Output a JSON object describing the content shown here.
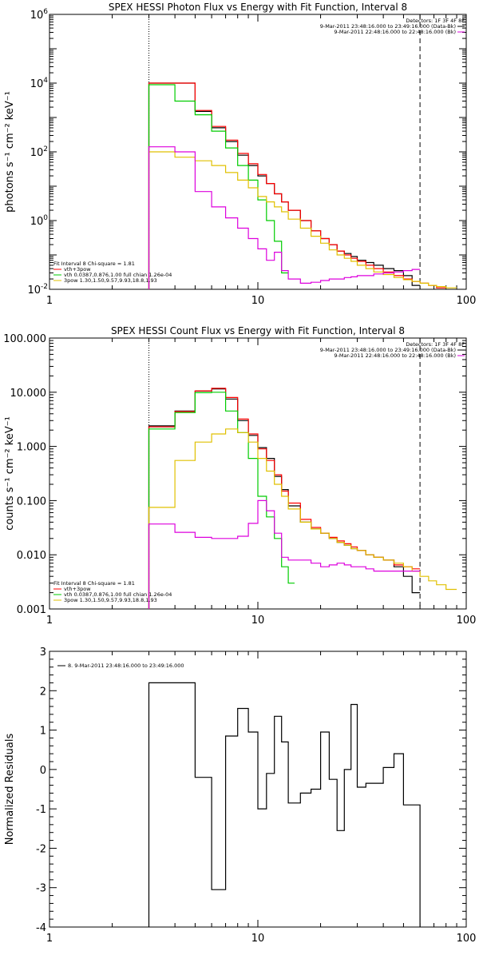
{
  "colors": {
    "black": "#000000",
    "red": "#ff0000",
    "green": "#00cc00",
    "magenta": "#dd00dd",
    "yellow": "#e0c000"
  },
  "chart_data": [
    {
      "id": "p1",
      "type": "line",
      "title": "SPEX HESSI Photon Flux vs Energy with Fit Function, Interval 8",
      "ylabel": "photons s⁻¹ cm⁻² keV⁻¹",
      "xscale": "log",
      "yscale": "log",
      "xlim": [
        1,
        100
      ],
      "ylim": [
        0.01,
        1000000
      ],
      "xticks": [
        {
          "v": 1,
          "label": "1"
        },
        {
          "v": 10,
          "label": "10"
        },
        {
          "v": 100,
          "label": "100"
        }
      ],
      "yticks": [
        {
          "v": 0.01,
          "label": "10",
          "sup": "-2"
        },
        {
          "v": 1,
          "label": "10",
          "sup": "0"
        },
        {
          "v": 100,
          "label": "10",
          "sup": "2"
        },
        {
          "v": 10000,
          "label": "10",
          "sup": "4"
        },
        {
          "v": 1000000,
          "label": "10",
          "sup": "6"
        }
      ],
      "vlines": [
        {
          "x": 3.0,
          "style": "dotted"
        },
        {
          "x": 60,
          "style": "dashed"
        }
      ],
      "legend_top": {
        "placement": "top-right",
        "header": "Detectors: 1F 3F 4F 8F",
        "items": [
          {
            "label": "9-Mar-2011 23:48:16.000 to 23:49:16.000 (Data-Bk)",
            "color": "black"
          },
          {
            "label": "9-Mar-2011 22:48:16.000 to 22:48:16.000 (Bk)",
            "color": "magenta"
          }
        ]
      },
      "legend_bottom": {
        "placement": "bottom-left",
        "header": "Fit Interval 8   Chi-square = 1.81",
        "items": [
          {
            "label": "vth+3pow",
            "color": "red"
          },
          {
            "label": "vth 0.0387,0.876,1.00  full chian 1.26e-04",
            "color": "green"
          },
          {
            "label": "3pow 1.30,1.50,9.57,9.93,18.8,1.93",
            "color": "yellow"
          }
        ]
      },
      "series": [
        {
          "color": "black",
          "edges": [
            3.0,
            4.0,
            5.0,
            6.0,
            7.0,
            8.0,
            9.0,
            10.0,
            11.0,
            12.0,
            13.0,
            14.0,
            16.0,
            18.0,
            20.0,
            22.0,
            24.0,
            26.0,
            28.0,
            30.0,
            33.0,
            36.0,
            40.0,
            45.0,
            50.0,
            55.0,
            60.0
          ],
          "values": [
            10000,
            10000,
            1500,
            500,
            200,
            80,
            40,
            20,
            12,
            6,
            3.5,
            2,
            1,
            0.5,
            0.3,
            0.2,
            0.13,
            0.11,
            0.09,
            0.07,
            0.06,
            0.05,
            0.04,
            0.035,
            0.025,
            0.013
          ]
        },
        {
          "color": "red",
          "edges": [
            3.0,
            4.0,
            5.0,
            6.0,
            7.0,
            8.0,
            9.0,
            10.0,
            11.0,
            12.0,
            13.0,
            14.0,
            16.0,
            18.0,
            20.0,
            22.0,
            24.0,
            26.0,
            28.0,
            30.0,
            33.0,
            36.0,
            40.0,
            45.0,
            50.0,
            55.0,
            60.0,
            66.0,
            72.0,
            80.0
          ],
          "values": [
            10000,
            10000,
            1600,
            550,
            220,
            90,
            45,
            22,
            12,
            6,
            3.5,
            2,
            1,
            0.5,
            0.3,
            0.2,
            0.13,
            0.1,
            0.08,
            0.065,
            0.05,
            0.04,
            0.032,
            0.025,
            0.02,
            0.017,
            0.015,
            0.013,
            0.011
          ]
        },
        {
          "color": "green",
          "edges": [
            3.0,
            4.0,
            5.0,
            6.0,
            7.0,
            8.0,
            9.0,
            10.0,
            11.0,
            12.0,
            13.0,
            14.0
          ],
          "values": [
            9000,
            3000,
            1200,
            400,
            130,
            40,
            15,
            4,
            1,
            0.25,
            0.03
          ]
        },
        {
          "color": "yellow",
          "edges": [
            3.0,
            4.0,
            5.0,
            6.0,
            7.0,
            8.0,
            9.0,
            10.0,
            11.0,
            12.0,
            13.0,
            14.0,
            16.0,
            18.0,
            20.0,
            22.0,
            24.0,
            26.0,
            28.0,
            30.0,
            33.0,
            36.0,
            40.0,
            45.0,
            50.0,
            55.0,
            60.0,
            66.0,
            72.0,
            80.0,
            90.0
          ],
          "values": [
            100,
            70,
            55,
            40,
            25,
            15,
            9,
            5,
            3.5,
            2.5,
            1.8,
            1.1,
            0.6,
            0.35,
            0.22,
            0.14,
            0.1,
            0.08,
            0.065,
            0.05,
            0.04,
            0.032,
            0.027,
            0.022,
            0.019,
            0.017,
            0.015,
            0.013,
            0.012,
            0.011
          ]
        },
        {
          "color": "magenta",
          "edges": [
            3.0,
            4.0,
            5.0,
            6.0,
            7.0,
            8.0,
            9.0,
            10.0,
            11.0,
            12.0,
            13.0,
            14.0,
            16.0,
            18.0,
            20.0,
            22.0,
            24.0,
            26.0,
            28.0,
            30.0,
            33.0,
            36.0,
            40.0,
            45.0,
            50.0,
            55.0,
            60.0
          ],
          "values": [
            140,
            100,
            7,
            2.5,
            1.2,
            0.6,
            0.3,
            0.15,
            0.07,
            0.12,
            0.035,
            0.02,
            0.015,
            0.016,
            0.018,
            0.02,
            0.02,
            0.022,
            0.023,
            0.025,
            0.025,
            0.028,
            0.03,
            0.032,
            0.035,
            0.038
          ]
        }
      ]
    },
    {
      "id": "p2",
      "type": "line",
      "title": "SPEX HESSI Count Flux vs Energy with Fit Function, Interval 8",
      "ylabel": "counts s⁻¹ cm⁻² keV⁻¹",
      "xscale": "log",
      "yscale": "log",
      "xlim": [
        1,
        100
      ],
      "ylim": [
        0.001,
        100
      ],
      "xticks": [
        {
          "v": 1,
          "label": "1"
        },
        {
          "v": 10,
          "label": "10"
        },
        {
          "v": 100,
          "label": "100"
        }
      ],
      "yticks": [
        {
          "v": 0.001,
          "label": "0.001"
        },
        {
          "v": 0.01,
          "label": "0.010"
        },
        {
          "v": 0.1,
          "label": "0.100"
        },
        {
          "v": 1,
          "label": "1.000"
        },
        {
          "v": 10,
          "label": "10.000"
        },
        {
          "v": 100,
          "label": "100.000"
        }
      ],
      "vlines": [
        {
          "x": 3.0,
          "style": "dotted"
        },
        {
          "x": 60,
          "style": "dashed"
        }
      ],
      "legend_top": {
        "placement": "top-right",
        "header": "Detectors: 1F 3F 4F 8F",
        "items": [
          {
            "label": "9-Mar-2011 23:48:16.000 to 23:49:16.000 (Data-Bk)",
            "color": "black"
          },
          {
            "label": "9-Mar-2011 22:48:16.000 to 22:48:16.000 (Bk)",
            "color": "magenta"
          }
        ]
      },
      "legend_bottom": {
        "placement": "bottom-left",
        "header": "Fit Interval 8   Chi-square = 1.81",
        "items": [
          {
            "label": "vth+3pow",
            "color": "red"
          },
          {
            "label": "vth 0.0387,0.876,1.00  full chian 1.26e-04",
            "color": "green"
          },
          {
            "label": "3pow 1.30,1.50,9.57,9.93,18.8,1.93",
            "color": "yellow"
          }
        ]
      },
      "series": [
        {
          "color": "black",
          "edges": [
            3.0,
            4.0,
            5.0,
            6.0,
            7.0,
            8.0,
            9.0,
            10.0,
            11.0,
            12.0,
            13.0,
            14.0,
            16.0,
            18.0,
            20.0,
            22.0,
            24.0,
            26.0,
            28.0,
            30.0,
            33.0,
            36.0,
            40.0,
            45.0,
            50.0,
            55.0,
            60.0
          ],
          "values": [
            2.4,
            4.5,
            10.5,
            11.5,
            7.5,
            3.0,
            1.6,
            0.95,
            0.6,
            0.28,
            0.16,
            0.08,
            0.04,
            0.03,
            0.025,
            0.02,
            0.017,
            0.015,
            0.013,
            0.012,
            0.01,
            0.009,
            0.008,
            0.006,
            0.004,
            0.002
          ]
        },
        {
          "color": "red",
          "edges": [
            3.0,
            4.0,
            5.0,
            6.0,
            7.0,
            8.0,
            9.0,
            10.0,
            11.0,
            12.0,
            13.0,
            14.0,
            16.0,
            18.0,
            20.0,
            22.0,
            24.0,
            26.0,
            28.0,
            30.0,
            33.0,
            36.0,
            40.0,
            45.0,
            50.0,
            55.0,
            60.0
          ],
          "values": [
            2.3,
            4.4,
            10.6,
            11.8,
            8.0,
            3.2,
            1.7,
            0.9,
            0.55,
            0.3,
            0.15,
            0.09,
            0.045,
            0.032,
            0.025,
            0.021,
            0.018,
            0.016,
            0.014,
            0.012,
            0.01,
            0.009,
            0.008,
            0.0065,
            0.006,
            0.0055
          ]
        },
        {
          "color": "green",
          "edges": [
            3.0,
            4.0,
            5.0,
            6.0,
            7.0,
            8.0,
            9.0,
            10.0,
            11.0,
            12.0,
            13.0,
            14.0,
            15.0
          ],
          "values": [
            2.1,
            4.2,
            9.8,
            10.0,
            4.5,
            1.8,
            0.6,
            0.12,
            0.05,
            0.02,
            0.006,
            0.003
          ]
        },
        {
          "color": "yellow",
          "edges": [
            3.0,
            4.0,
            5.0,
            6.0,
            7.0,
            8.0,
            9.0,
            10.0,
            11.0,
            12.0,
            13.0,
            14.0,
            16.0,
            18.0,
            20.0,
            22.0,
            24.0,
            26.0,
            28.0,
            30.0,
            33.0,
            36.0,
            40.0,
            45.0,
            50.0,
            55.0,
            60.0,
            66.0,
            72.0,
            80.0,
            90.0
          ],
          "values": [
            0.075,
            0.55,
            1.2,
            1.7,
            2.1,
            1.8,
            1.2,
            0.6,
            0.35,
            0.2,
            0.12,
            0.07,
            0.04,
            0.03,
            0.025,
            0.02,
            0.017,
            0.015,
            0.013,
            0.012,
            0.01,
            0.009,
            0.008,
            0.007,
            0.006,
            0.005,
            0.004,
            0.0033,
            0.0028,
            0.0023
          ]
        },
        {
          "color": "magenta",
          "edges": [
            3.0,
            4.0,
            5.0,
            6.0,
            7.0,
            8.0,
            9.0,
            10.0,
            11.0,
            12.0,
            13.0,
            14.0,
            16.0,
            18.0,
            20.0,
            22.0,
            24.0,
            26.0,
            28.0,
            30.0,
            33.0,
            36.0,
            40.0,
            45.0,
            50.0,
            55.0,
            60.0
          ],
          "values": [
            0.037,
            0.026,
            0.021,
            0.02,
            0.02,
            0.022,
            0.038,
            0.1,
            0.065,
            0.025,
            0.009,
            0.008,
            0.008,
            0.007,
            0.006,
            0.0065,
            0.007,
            0.0065,
            0.006,
            0.006,
            0.0055,
            0.005,
            0.005,
            0.005,
            0.005,
            0.005
          ]
        }
      ]
    },
    {
      "id": "p3",
      "type": "line",
      "title": "",
      "ylabel": "Normalized Residuals",
      "xscale": "log",
      "yscale": "linear",
      "xlim": [
        1,
        100
      ],
      "ylim": [
        -4,
        3
      ],
      "xticks": [
        {
          "v": 1,
          "label": "1"
        },
        {
          "v": 10,
          "label": "10"
        },
        {
          "v": 100,
          "label": "100"
        }
      ],
      "yticks": [
        {
          "v": -4,
          "label": "-4"
        },
        {
          "v": -3,
          "label": "-3"
        },
        {
          "v": -2,
          "label": "-2"
        },
        {
          "v": -1,
          "label": "-1"
        },
        {
          "v": 0,
          "label": "0"
        },
        {
          "v": 1,
          "label": "1"
        },
        {
          "v": 2,
          "label": "2"
        },
        {
          "v": 3,
          "label": "3"
        }
      ],
      "vlines": [],
      "legend_top": {
        "placement": "top-left",
        "header": "",
        "items": [
          {
            "label": "8. 9-Mar-2011 23:48:16.000 to 23:49:16.000",
            "color": "black"
          }
        ]
      },
      "series": [
        {
          "color": "black",
          "edges": [
            3.0,
            4.0,
            5.0,
            6.0,
            7.0,
            8.0,
            9.0,
            10.0,
            11.0,
            12.0,
            13.0,
            14.0,
            16.0,
            18.0,
            20.0,
            22.0,
            24.0,
            26.0,
            28.0,
            30.0,
            33.0,
            36.0,
            40.0,
            45.0,
            50.0,
            55.0,
            60.0
          ],
          "values": [
            2.2,
            2.2,
            -0.2,
            -3.05,
            0.85,
            1.55,
            0.95,
            -1.0,
            -0.1,
            1.35,
            0.7,
            -0.85,
            -0.6,
            -0.5,
            0.95,
            -0.25,
            -1.55,
            0.0,
            1.65,
            -0.45,
            -0.35,
            -0.35,
            0.05,
            0.4,
            -0.9,
            -0.9
          ],
          "drop_edges": true
        }
      ]
    }
  ]
}
